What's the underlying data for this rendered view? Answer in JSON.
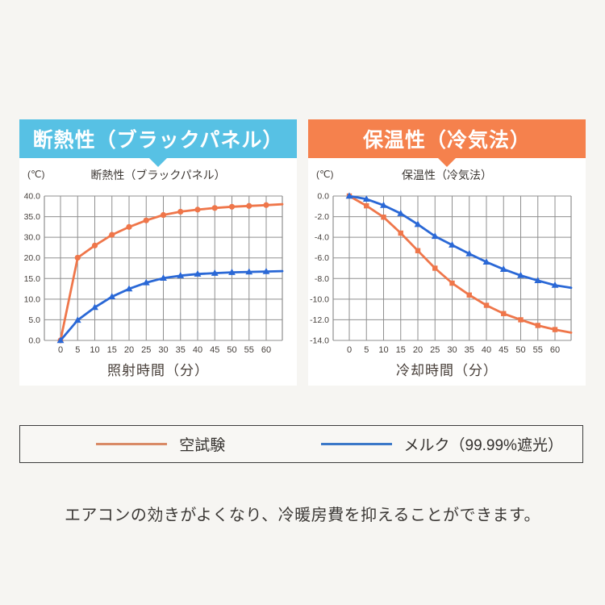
{
  "page": {
    "background": "#f6f5f2",
    "panel_background": "#ffffff",
    "footer_text": "エアコンの効きがよくなり、冷暖房費を抑えることができます。"
  },
  "legend": {
    "items": [
      {
        "label": "空試験",
        "color": "#d98a66"
      },
      {
        "label": "メルク（99.99%遮光）",
        "color": "#3b78c8"
      }
    ]
  },
  "chart_data": [
    {
      "type": "line",
      "banner": {
        "label": "断熱性（ブラックパネル）",
        "color": "#57c1e4"
      },
      "title": "断熱性（ブラックパネル）",
      "unit_label": "(℃)",
      "xlabel": "照射時間（分）",
      "x": [
        0,
        5,
        10,
        15,
        20,
        25,
        30,
        35,
        40,
        45,
        50,
        55,
        60
      ],
      "y_ticks_top_to_bottom": [
        "40.0",
        "35.0",
        "30.0",
        "20.0",
        "15.0",
        "10.0",
        "5.0",
        "0.0"
      ],
      "grid": true,
      "legend_position": "below-shared",
      "series": [
        {
          "name": "空試験",
          "color": "#ef764a",
          "marker": "circle",
          "values": [
            0.0,
            20.1,
            26.0,
            30.6,
            32.5,
            34.1,
            35.4,
            36.2,
            36.7,
            37.1,
            37.4,
            37.6,
            37.8
          ],
          "edge_value": 38.0
        },
        {
          "name": "メルク（99.99%遮光）",
          "color": "#2a68d6",
          "marker": "triangle",
          "values": [
            0.0,
            4.9,
            8.0,
            10.6,
            12.5,
            14.0,
            15.1,
            15.7,
            16.1,
            16.3,
            16.5,
            16.6,
            16.7
          ],
          "edge_value": 16.8
        }
      ]
    },
    {
      "type": "line",
      "banner": {
        "label": "保温性（冷気法）",
        "color": "#f5814d"
      },
      "title": "保温性（冷気法）",
      "unit_label": "(℃)",
      "xlabel": "冷却時間（分）",
      "x": [
        0,
        5,
        10,
        15,
        20,
        25,
        30,
        35,
        40,
        45,
        50,
        55,
        60
      ],
      "y_ticks_top_to_bottom": [
        "0.0",
        "-2.0",
        "-4.0",
        "-6.0",
        "-8.0",
        "-10.0",
        "-12.0",
        "-14.0"
      ],
      "grid": true,
      "legend_position": "below-shared",
      "series": [
        {
          "name": "空試験",
          "color": "#ef764a",
          "marker": "square",
          "values": [
            0.0,
            -0.95,
            -2.05,
            -3.6,
            -5.3,
            -7.0,
            -8.45,
            -9.6,
            -10.6,
            -11.4,
            -12.0,
            -12.55,
            -12.95
          ],
          "edge_value": -13.25
        },
        {
          "name": "メルク（99.99%遮光）",
          "color": "#2a68d6",
          "marker": "triangle",
          "values": [
            0.0,
            -0.3,
            -0.9,
            -1.7,
            -2.75,
            -3.9,
            -4.75,
            -5.6,
            -6.4,
            -7.1,
            -7.7,
            -8.2,
            -8.65
          ],
          "edge_value": -8.9
        }
      ]
    }
  ],
  "chart_style": {
    "grid_color": "#8f8f8f",
    "tick_label_color": "#46403c"
  }
}
